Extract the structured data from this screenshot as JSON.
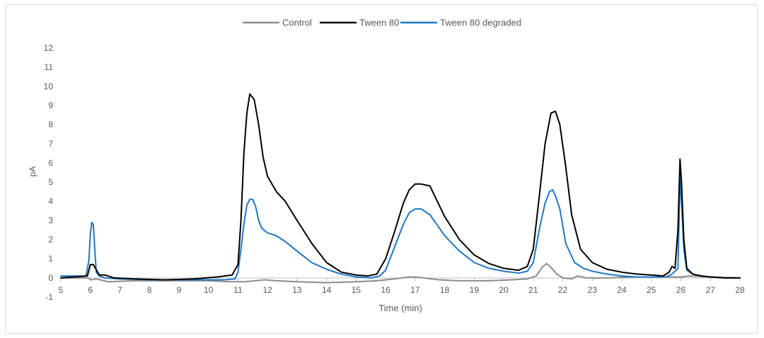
{
  "chart_data": {
    "type": "line",
    "title": "",
    "xlabel": "Time (min)",
    "ylabel": "pA",
    "xlim": [
      5,
      28
    ],
    "ylim": [
      -1,
      12
    ],
    "xticks": [
      "5",
      "6",
      "7",
      "8",
      "9",
      "10",
      "11",
      "12",
      "13",
      "14",
      "15",
      "16",
      "17",
      "18",
      "19",
      "20",
      "21",
      "22",
      "23",
      "24",
      "25",
      "26",
      "27",
      "28"
    ],
    "yticks": [
      "-1",
      "0",
      "1",
      "2",
      "3",
      "4",
      "5",
      "6",
      "7",
      "8",
      "9",
      "10",
      "11",
      "12"
    ],
    "legend_position": "top-center",
    "grid": false,
    "series": [
      {
        "name": "Control",
        "color": "#8c8c8c",
        "x": [
          5.0,
          5.9,
          6.05,
          6.2,
          6.6,
          7.5,
          9.0,
          10.0,
          10.8,
          11.2,
          11.6,
          11.9,
          12.3,
          13.0,
          14.0,
          15.0,
          15.7,
          16.3,
          16.8,
          17.0,
          17.3,
          17.8,
          18.5,
          19.5,
          20.3,
          20.8,
          21.1,
          21.3,
          21.45,
          21.6,
          21.8,
          22.0,
          22.3,
          22.5,
          22.8,
          23.5,
          24.5,
          25.5,
          25.9,
          26.0,
          26.3,
          27.0,
          28.0
        ],
        "y": [
          0.0,
          0.0,
          -0.1,
          -0.05,
          -0.2,
          -0.15,
          -0.15,
          -0.15,
          -0.2,
          -0.2,
          -0.15,
          -0.1,
          -0.15,
          -0.2,
          -0.25,
          -0.2,
          -0.15,
          -0.05,
          0.05,
          0.05,
          0.0,
          -0.1,
          -0.15,
          -0.15,
          -0.1,
          -0.05,
          0.1,
          0.55,
          0.75,
          0.55,
          0.2,
          0.0,
          -0.05,
          0.1,
          0.0,
          0.0,
          0.05,
          0.05,
          0.05,
          0.05,
          0.1,
          0.05,
          0.0
        ]
      },
      {
        "name": "Tween 80",
        "color": "#000000",
        "x": [
          5.0,
          5.9,
          6.0,
          6.1,
          6.3,
          6.5,
          6.8,
          7.5,
          8.5,
          9.5,
          10.3,
          10.8,
          11.0,
          11.1,
          11.2,
          11.3,
          11.4,
          11.55,
          11.7,
          11.85,
          12.0,
          12.3,
          12.6,
          13.0,
          13.5,
          14.0,
          14.5,
          15.0,
          15.4,
          15.7,
          16.0,
          16.3,
          16.6,
          16.8,
          17.0,
          17.2,
          17.5,
          18.0,
          18.5,
          19.0,
          19.5,
          20.0,
          20.5,
          20.8,
          21.0,
          21.2,
          21.4,
          21.6,
          21.75,
          21.9,
          22.1,
          22.3,
          22.6,
          23.0,
          23.5,
          24.0,
          24.5,
          25.0,
          25.4,
          25.6,
          25.7,
          25.8,
          25.9,
          25.97,
          26.02,
          26.1,
          26.2,
          26.4,
          26.7,
          27.0,
          27.5,
          28.0
        ],
        "y": [
          0.0,
          0.1,
          0.7,
          0.7,
          0.15,
          0.15,
          0.0,
          -0.05,
          -0.1,
          -0.05,
          0.05,
          0.15,
          0.7,
          3.0,
          6.5,
          8.6,
          9.6,
          9.3,
          8.0,
          6.3,
          5.3,
          4.5,
          4.0,
          3.0,
          1.8,
          0.8,
          0.3,
          0.15,
          0.1,
          0.2,
          1.0,
          2.4,
          3.9,
          4.6,
          4.9,
          4.9,
          4.8,
          3.2,
          2.0,
          1.2,
          0.75,
          0.5,
          0.4,
          0.6,
          1.5,
          4.2,
          7.0,
          8.6,
          8.7,
          8.0,
          5.8,
          3.3,
          1.5,
          0.8,
          0.45,
          0.3,
          0.2,
          0.15,
          0.1,
          0.3,
          0.6,
          0.5,
          2.5,
          6.2,
          5.0,
          2.0,
          0.5,
          0.2,
          0.1,
          0.05,
          0.0,
          0.0
        ]
      },
      {
        "name": "Tween 80 degraded",
        "color": "#1f77c4",
        "x": [
          5.0,
          5.85,
          5.95,
          6.0,
          6.05,
          6.1,
          6.15,
          6.2,
          6.3,
          6.5,
          7.0,
          8.0,
          9.0,
          10.0,
          10.5,
          10.9,
          11.0,
          11.1,
          11.2,
          11.3,
          11.4,
          11.5,
          11.6,
          11.7,
          11.8,
          12.0,
          12.3,
          12.6,
          13.0,
          13.5,
          14.0,
          14.5,
          15.0,
          15.5,
          15.8,
          16.0,
          16.3,
          16.6,
          16.8,
          17.0,
          17.2,
          17.5,
          18.0,
          18.5,
          19.0,
          19.5,
          20.0,
          20.5,
          20.8,
          21.0,
          21.2,
          21.4,
          21.55,
          21.65,
          21.75,
          21.9,
          22.1,
          22.4,
          22.7,
          23.0,
          23.5,
          24.0,
          24.5,
          25.0,
          25.5,
          25.7,
          25.9,
          25.97,
          26.02,
          26.1,
          26.2,
          26.4,
          26.7,
          27.0,
          27.5,
          28.0
        ],
        "y": [
          0.1,
          0.1,
          0.9,
          2.3,
          2.9,
          2.8,
          1.5,
          0.3,
          0.1,
          0.0,
          -0.05,
          -0.1,
          -0.1,
          -0.1,
          -0.1,
          -0.05,
          0.3,
          1.5,
          2.8,
          3.8,
          4.1,
          4.1,
          3.7,
          3.0,
          2.6,
          2.35,
          2.2,
          1.9,
          1.4,
          0.8,
          0.45,
          0.2,
          0.05,
          0.0,
          0.1,
          0.4,
          1.6,
          2.8,
          3.4,
          3.6,
          3.6,
          3.3,
          2.2,
          1.4,
          0.8,
          0.5,
          0.35,
          0.25,
          0.35,
          0.8,
          2.5,
          3.9,
          4.5,
          4.6,
          4.3,
          3.6,
          1.8,
          0.8,
          0.5,
          0.35,
          0.2,
          0.1,
          0.05,
          0.05,
          0.05,
          0.2,
          0.5,
          5.2,
          4.0,
          1.5,
          0.4,
          0.2,
          0.1,
          0.05,
          0.0,
          0.0
        ]
      }
    ]
  }
}
